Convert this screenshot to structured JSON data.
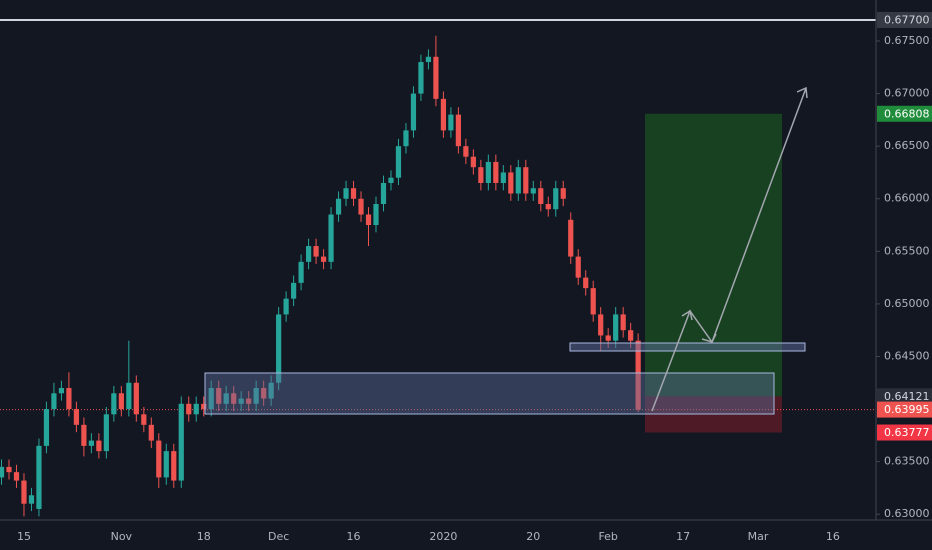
{
  "chart_data": {
    "type": "candlestick",
    "categories": [
      null,
      null,
      null,
      "15",
      null,
      null,
      null,
      null,
      null,
      null,
      null,
      null,
      null,
      null,
      null,
      null,
      "Nov",
      null,
      null,
      null,
      null,
      null,
      null,
      null,
      null,
      null,
      null,
      "18",
      null,
      null,
      null,
      null,
      null,
      null,
      null,
      null,
      null,
      "Dec",
      null,
      null,
      null,
      null,
      null,
      null,
      null,
      null,
      null,
      "16",
      null,
      null,
      null,
      null,
      null,
      null,
      null,
      null,
      null,
      null,
      null,
      "2020",
      null,
      null,
      null,
      null,
      null,
      null,
      null,
      null,
      null,
      null,
      null,
      "20",
      null,
      null,
      null,
      null,
      null,
      null,
      null,
      null,
      null,
      "Feb",
      null,
      null,
      null,
      null,
      null,
      null,
      null,
      null,
      null,
      "17",
      null,
      null,
      null,
      null,
      null,
      null,
      null,
      null,
      null,
      "Mar",
      null,
      null,
      null,
      null,
      null,
      null,
      null,
      null,
      null,
      "16",
      null,
      null,
      null,
      null
    ],
    "open": [
      0.6335,
      0.6345,
      0.634,
      0.6332,
      0.631,
      0.6305,
      0.6365,
      0.64,
      0.6415,
      0.642,
      0.64,
      0.6385,
      0.6365,
      0.637,
      0.636,
      0.6395,
      0.6415,
      0.64,
      0.6425,
      0.6395,
      0.6385,
      0.637,
      0.6335,
      0.636,
      0.6332,
      0.6405,
      0.6395,
      0.6405,
      0.64,
      0.642,
      0.6405,
      0.6415,
      0.6405,
      0.641,
      0.6405,
      0.642,
      0.641,
      0.6425,
      0.649,
      0.6505,
      0.652,
      0.654,
      0.6555,
      0.6545,
      0.654,
      0.6585,
      0.66,
      0.661,
      0.66,
      0.6585,
      0.6575,
      0.6595,
      0.6615,
      0.662,
      0.665,
      0.6665,
      0.67,
      0.673,
      0.6735,
      0.6695,
      0.6665,
      0.668,
      0.665,
      0.664,
      0.663,
      0.6615,
      0.6635,
      0.6615,
      0.6625,
      0.6605,
      0.663,
      0.6605,
      0.661,
      0.6595,
      0.659,
      0.661,
      0.658,
      0.6545,
      0.6525,
      0.6515,
      0.649,
      0.647,
      0.6465,
      0.649,
      0.6475,
      0.6465,
      null,
      null,
      null,
      null,
      null,
      null,
      null,
      null,
      null,
      null,
      null,
      null,
      null,
      null,
      null,
      null,
      null,
      null,
      null,
      null,
      null,
      null,
      null,
      null,
      null,
      null,
      null,
      null,
      null,
      null
    ],
    "high": [
      0.6352,
      0.6352,
      0.6347,
      0.6339,
      0.6325,
      0.6372,
      0.6407,
      0.6425,
      0.6427,
      0.6435,
      0.6407,
      0.6392,
      0.6377,
      0.6377,
      0.6402,
      0.6422,
      0.6422,
      0.6465,
      0.6432,
      0.6402,
      0.6392,
      0.6377,
      0.6367,
      0.6367,
      0.6412,
      0.6412,
      0.6412,
      0.6412,
      0.6427,
      0.6427,
      0.6422,
      0.6422,
      0.6417,
      0.6417,
      0.6427,
      0.6427,
      0.6432,
      0.6497,
      0.6512,
      0.6527,
      0.6547,
      0.6562,
      0.6562,
      0.6552,
      0.6592,
      0.6607,
      0.6617,
      0.6617,
      0.6607,
      0.6592,
      0.6602,
      0.6622,
      0.6627,
      0.6657,
      0.6672,
      0.6707,
      0.6737,
      0.6742,
      0.6755,
      0.6702,
      0.6687,
      0.6687,
      0.6657,
      0.6647,
      0.6637,
      0.6642,
      0.6642,
      0.6632,
      0.6632,
      0.6637,
      0.6637,
      0.6617,
      0.6617,
      0.6602,
      0.6617,
      0.6617,
      0.6587,
      0.6552,
      0.6532,
      0.6522,
      0.6497,
      0.6477,
      0.6497,
      0.6497,
      0.6482,
      0.6472,
      null,
      null,
      null,
      null,
      null,
      null,
      null,
      null,
      null,
      null,
      null,
      null,
      null,
      null,
      null,
      null,
      null,
      null,
      null,
      null,
      null,
      null,
      null,
      null,
      null,
      null,
      null,
      null,
      null,
      null
    ],
    "low": [
      0.6328,
      0.6333,
      0.6325,
      0.6298,
      0.6303,
      0.6298,
      0.6358,
      0.6393,
      0.6408,
      0.6393,
      0.6378,
      0.6355,
      0.6358,
      0.6353,
      0.6353,
      0.6388,
      0.6393,
      0.6393,
      0.6388,
      0.6378,
      0.6363,
      0.6325,
      0.6328,
      0.6325,
      0.6325,
      0.6388,
      0.6388,
      0.6393,
      0.6393,
      0.6398,
      0.6398,
      0.6398,
      0.6398,
      0.6398,
      0.6398,
      0.6403,
      0.6403,
      0.6418,
      0.6483,
      0.6498,
      0.6513,
      0.6533,
      0.6538,
      0.6533,
      0.6533,
      0.6578,
      0.6593,
      0.6593,
      0.6578,
      0.6555,
      0.6568,
      0.6588,
      0.6608,
      0.6613,
      0.6643,
      0.6658,
      0.6693,
      0.6723,
      0.6688,
      0.6658,
      0.6658,
      0.6643,
      0.6633,
      0.6623,
      0.6608,
      0.6608,
      0.6608,
      0.6608,
      0.6598,
      0.6598,
      0.6598,
      0.6598,
      0.6588,
      0.6583,
      0.6583,
      0.6593,
      0.6538,
      0.6518,
      0.6508,
      0.6483,
      0.6455,
      0.6458,
      0.6458,
      0.6468,
      0.6458,
      0.6397,
      null,
      null,
      null,
      null,
      null,
      null,
      null,
      null,
      null,
      null,
      null,
      null,
      null,
      null,
      null,
      null,
      null,
      null,
      null,
      null,
      null,
      null,
      null,
      null,
      null,
      null,
      null,
      null,
      null,
      null
    ],
    "close": [
      0.6345,
      0.634,
      0.6332,
      0.631,
      0.6318,
      0.6365,
      0.64,
      0.6415,
      0.642,
      0.64,
      0.6385,
      0.6365,
      0.637,
      0.636,
      0.6395,
      0.6415,
      0.64,
      0.6425,
      0.6395,
      0.6385,
      0.637,
      0.6335,
      0.636,
      0.6332,
      0.6405,
      0.6395,
      0.6405,
      0.64,
      0.642,
      0.6405,
      0.6415,
      0.6405,
      0.641,
      0.6405,
      0.642,
      0.641,
      0.6425,
      0.649,
      0.6505,
      0.652,
      0.654,
      0.6555,
      0.6545,
      0.654,
      0.6585,
      0.66,
      0.661,
      0.66,
      0.6585,
      0.6575,
      0.6595,
      0.6615,
      0.662,
      0.665,
      0.6665,
      0.67,
      0.673,
      0.6735,
      0.6695,
      0.6665,
      0.668,
      0.665,
      0.664,
      0.663,
      0.6615,
      0.6635,
      0.6615,
      0.6625,
      0.6605,
      0.663,
      0.6605,
      0.661,
      0.6595,
      0.659,
      0.661,
      0.66,
      0.6545,
      0.6525,
      0.6515,
      0.649,
      0.647,
      0.6465,
      0.649,
      0.6475,
      0.6465,
      0.63995,
      null,
      null,
      null,
      null,
      null,
      null,
      null,
      null,
      null,
      null,
      null,
      null,
      null,
      null,
      null,
      null,
      null,
      null,
      null,
      null,
      null,
      null,
      null,
      null,
      null,
      null,
      null,
      null,
      null,
      null
    ],
    "ylim": [
      0.62945,
      0.6789
    ],
    "yticks": [
      {
        "value": 0.63,
        "label": "0.63000"
      },
      {
        "value": 0.635,
        "label": "0.63500"
      },
      {
        "value": 0.645,
        "label": "0.64500"
      },
      {
        "value": 0.65,
        "label": "0.65000"
      },
      {
        "value": 0.655,
        "label": "0.65500"
      },
      {
        "value": 0.66,
        "label": "0.66000"
      },
      {
        "value": 0.665,
        "label": "0.66500"
      },
      {
        "value": 0.67,
        "label": "0.67000"
      },
      {
        "value": 0.675,
        "label": "0.67500"
      }
    ],
    "horizontal_line": {
      "value": 0.677,
      "label": "0.67700"
    },
    "take_profit": {
      "value": 0.66808,
      "label": "0.66808"
    },
    "entry": {
      "value": 0.64121,
      "label": "0.64121"
    },
    "last_price": {
      "value": 0.63995,
      "label": "0.63995"
    },
    "stop_loss": {
      "value": 0.63777,
      "label": "0.63777"
    },
    "up_color": "#26a69a",
    "down_color": "#ef5350"
  }
}
